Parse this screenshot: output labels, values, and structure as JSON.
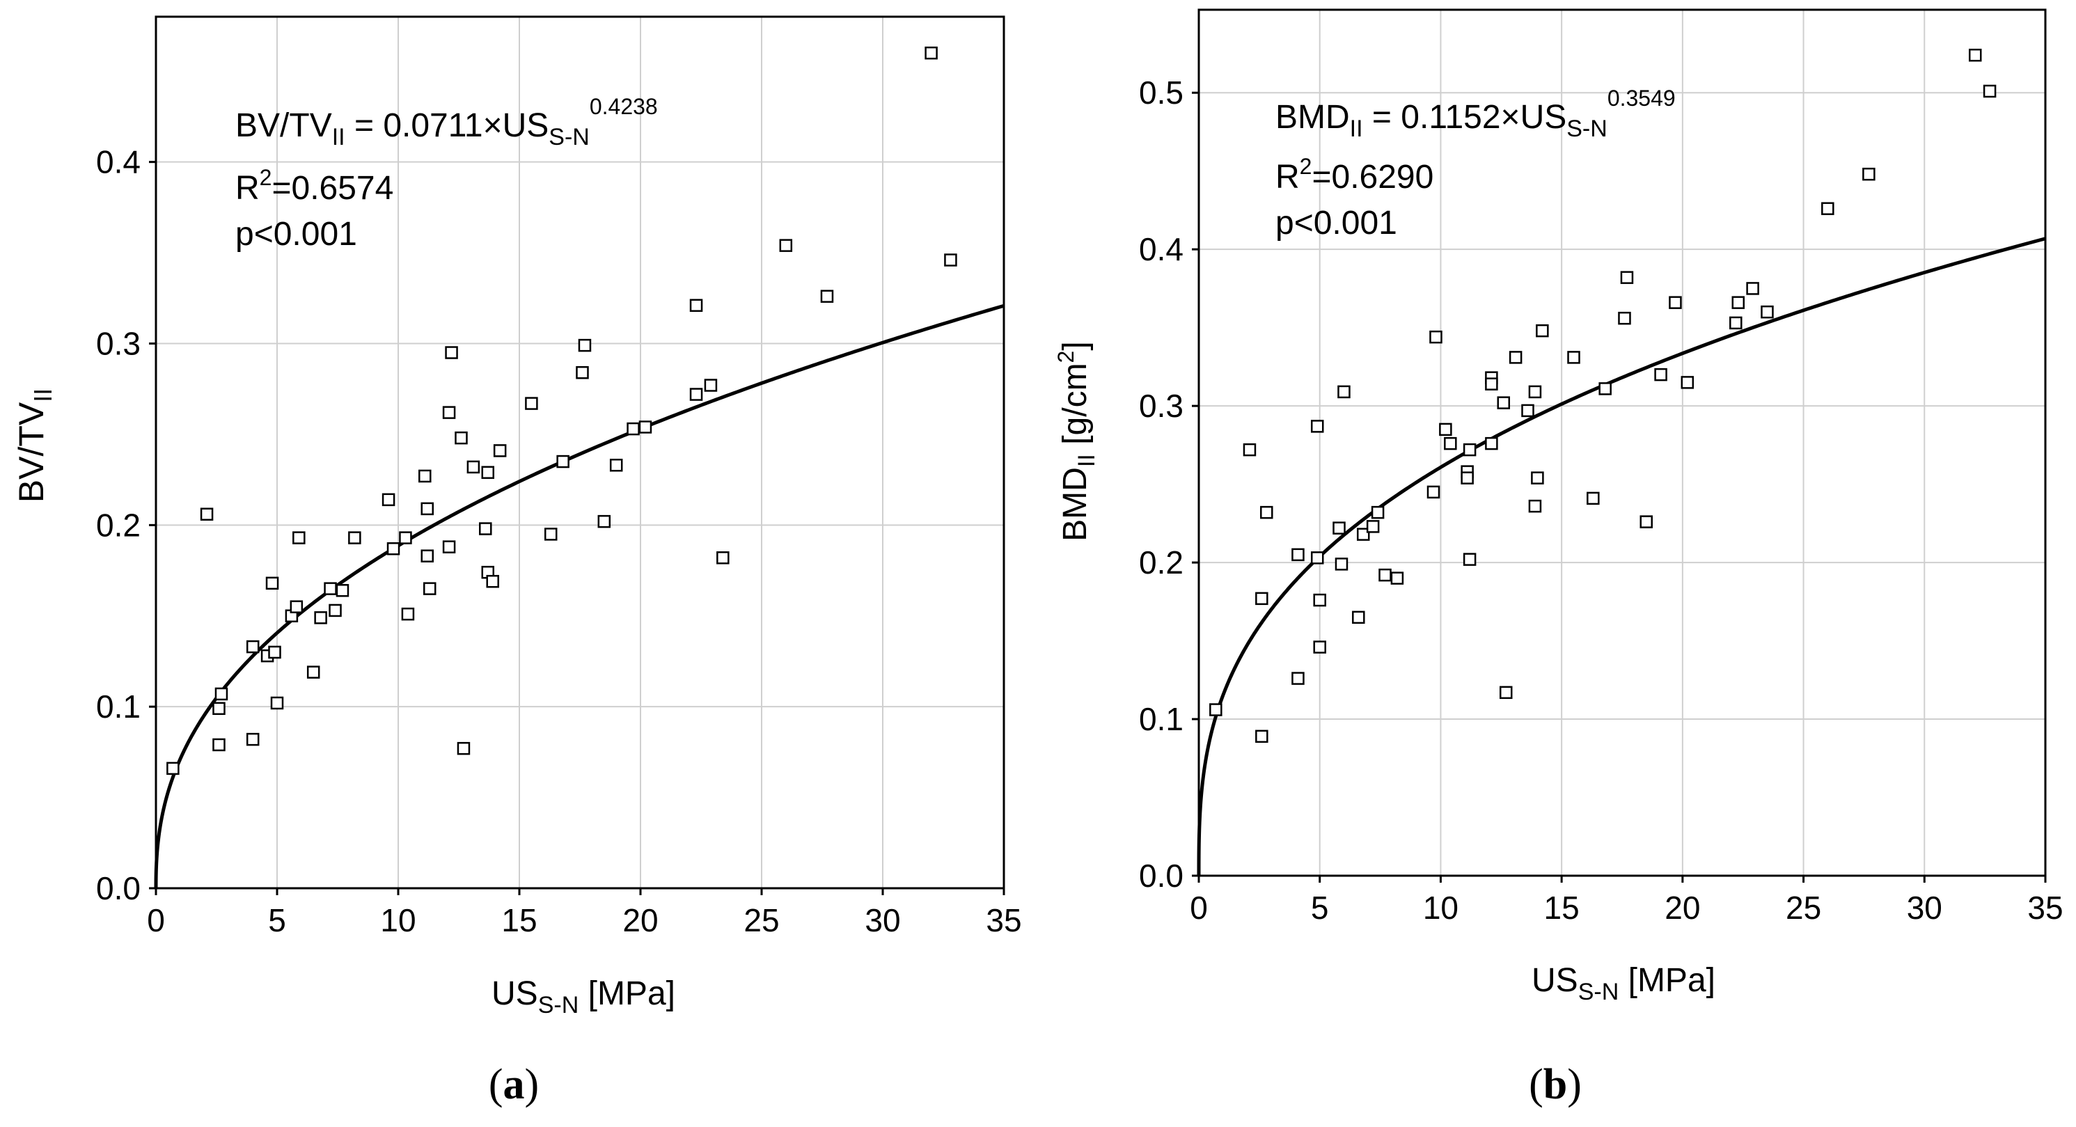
{
  "chart_data": [
    {
      "type": "scatter",
      "panel_label": "(a)",
      "panel_letter": "a",
      "xlim": [
        0,
        35
      ],
      "ylim": [
        0,
        0.48
      ],
      "xticks": [
        0,
        5,
        10,
        15,
        20,
        25,
        30,
        35
      ],
      "xtick_labels": [
        "0",
        "5",
        "10",
        "15",
        "20",
        "25",
        "30",
        "35"
      ],
      "yticks": [
        0,
        0.1,
        0.2,
        0.3,
        0.4
      ],
      "ytick_labels": [
        "0.0",
        "0.1",
        "0.2",
        "0.3",
        "0.4"
      ],
      "grid": true,
      "xlabel": {
        "main": "US",
        "sub": "S-N",
        "tail": " [MPa]"
      },
      "ylabel": {
        "main": "BV/TV",
        "sub": "II",
        "tail": ""
      },
      "equation": {
        "lhs": "BV/TV",
        "lhs_sub": "II",
        "mid": " = 0.0711×US",
        "var_sub": "S-N",
        "exponent": "0.4238"
      },
      "r2": {
        "main": "R",
        "sup": "2",
        "value": "=0.6574"
      },
      "p_value": "p<0.001",
      "fit": {
        "a": 0.0711,
        "b": 0.4238
      },
      "points": [
        [
          0.7,
          0.066
        ],
        [
          2.1,
          0.206
        ],
        [
          2.6,
          0.079
        ],
        [
          2.6,
          0.099
        ],
        [
          2.7,
          0.107
        ],
        [
          4.0,
          0.082
        ],
        [
          4.0,
          0.133
        ],
        [
          4.6,
          0.128
        ],
        [
          4.8,
          0.168
        ],
        [
          4.9,
          0.13
        ],
        [
          5.0,
          0.102
        ],
        [
          5.6,
          0.15
        ],
        [
          5.8,
          0.155
        ],
        [
          5.9,
          0.193
        ],
        [
          6.5,
          0.119
        ],
        [
          6.8,
          0.149
        ],
        [
          7.2,
          0.165
        ],
        [
          7.4,
          0.153
        ],
        [
          7.7,
          0.164
        ],
        [
          8.2,
          0.193
        ],
        [
          9.6,
          0.214
        ],
        [
          9.8,
          0.187
        ],
        [
          10.3,
          0.193
        ],
        [
          10.4,
          0.151
        ],
        [
          11.1,
          0.227
        ],
        [
          11.2,
          0.183
        ],
        [
          11.2,
          0.209
        ],
        [
          11.3,
          0.165
        ],
        [
          12.1,
          0.262
        ],
        [
          12.1,
          0.188
        ],
        [
          12.2,
          0.295
        ],
        [
          12.6,
          0.248
        ],
        [
          12.7,
          0.077
        ],
        [
          13.1,
          0.232
        ],
        [
          13.6,
          0.198
        ],
        [
          13.7,
          0.229
        ],
        [
          13.7,
          0.174
        ],
        [
          13.9,
          0.169
        ],
        [
          14.2,
          0.241
        ],
        [
          15.5,
          0.267
        ],
        [
          16.3,
          0.195
        ],
        [
          16.8,
          0.235
        ],
        [
          17.6,
          0.284
        ],
        [
          17.7,
          0.299
        ],
        [
          18.5,
          0.202
        ],
        [
          19.0,
          0.233
        ],
        [
          19.7,
          0.253
        ],
        [
          20.2,
          0.254
        ],
        [
          22.3,
          0.272
        ],
        [
          22.3,
          0.321
        ],
        [
          22.9,
          0.277
        ],
        [
          23.4,
          0.182
        ],
        [
          26.0,
          0.354
        ],
        [
          27.7,
          0.326
        ],
        [
          32.0,
          0.46
        ],
        [
          32.8,
          0.346
        ]
      ]
    },
    {
      "type": "scatter",
      "panel_label": "(b)",
      "panel_letter": "b",
      "xlim": [
        0,
        35
      ],
      "ylim": [
        0,
        0.553
      ],
      "xticks": [
        0,
        5,
        10,
        15,
        20,
        25,
        30,
        35
      ],
      "xtick_labels": [
        "0",
        "5",
        "10",
        "15",
        "20",
        "25",
        "30",
        "35"
      ],
      "yticks": [
        0,
        0.1,
        0.2,
        0.3,
        0.4,
        0.5
      ],
      "ytick_labels": [
        "0.0",
        "0.1",
        "0.2",
        "0.3",
        "0.4",
        "0.5"
      ],
      "grid": true,
      "xlabel": {
        "main": "US",
        "sub": "S-N",
        "tail": " [MPa]"
      },
      "ylabel": {
        "main": "BMD",
        "sub": "II",
        "tail": " [g/cm",
        "tail_sup": "2",
        "tail_end": "]"
      },
      "equation": {
        "lhs": "BMD",
        "lhs_sub": "II",
        "mid": " = 0.1152×US",
        "var_sub": "S-N",
        "exponent": "0.3549"
      },
      "r2": {
        "main": "R",
        "sup": "2",
        "value": "=0.6290"
      },
      "p_value": "p<0.001",
      "fit": {
        "a": 0.1152,
        "b": 0.3549
      },
      "points": [
        [
          0.7,
          0.106
        ],
        [
          2.1,
          0.272
        ],
        [
          2.6,
          0.177
        ],
        [
          2.6,
          0.089
        ],
        [
          2.8,
          0.232
        ],
        [
          4.1,
          0.205
        ],
        [
          4.1,
          0.126
        ],
        [
          4.9,
          0.203
        ],
        [
          4.9,
          0.287
        ],
        [
          5.0,
          0.176
        ],
        [
          5.0,
          0.146
        ],
        [
          5.8,
          0.222
        ],
        [
          5.9,
          0.199
        ],
        [
          6.0,
          0.309
        ],
        [
          6.6,
          0.165
        ],
        [
          6.8,
          0.218
        ],
        [
          7.2,
          0.223
        ],
        [
          7.4,
          0.232
        ],
        [
          7.7,
          0.192
        ],
        [
          8.2,
          0.19
        ],
        [
          9.7,
          0.245
        ],
        [
          9.8,
          0.344
        ],
        [
          10.2,
          0.285
        ],
        [
          10.4,
          0.276
        ],
        [
          11.1,
          0.258
        ],
        [
          11.1,
          0.254
        ],
        [
          11.2,
          0.202
        ],
        [
          11.2,
          0.272
        ],
        [
          12.1,
          0.318
        ],
        [
          12.1,
          0.314
        ],
        [
          12.1,
          0.276
        ],
        [
          12.6,
          0.302
        ],
        [
          12.7,
          0.117
        ],
        [
          13.1,
          0.331
        ],
        [
          13.6,
          0.297
        ],
        [
          13.9,
          0.309
        ],
        [
          13.9,
          0.236
        ],
        [
          14.0,
          0.254
        ],
        [
          14.2,
          0.348
        ],
        [
          15.5,
          0.331
        ],
        [
          16.3,
          0.241
        ],
        [
          16.8,
          0.311
        ],
        [
          17.6,
          0.356
        ],
        [
          17.7,
          0.382
        ],
        [
          18.5,
          0.226
        ],
        [
          19.1,
          0.32
        ],
        [
          19.7,
          0.366
        ],
        [
          20.2,
          0.315
        ],
        [
          22.2,
          0.353
        ],
        [
          22.3,
          0.366
        ],
        [
          22.9,
          0.375
        ],
        [
          23.5,
          0.36
        ],
        [
          26.0,
          0.426
        ],
        [
          27.7,
          0.448
        ],
        [
          32.1,
          0.524
        ],
        [
          32.7,
          0.501
        ]
      ]
    }
  ]
}
